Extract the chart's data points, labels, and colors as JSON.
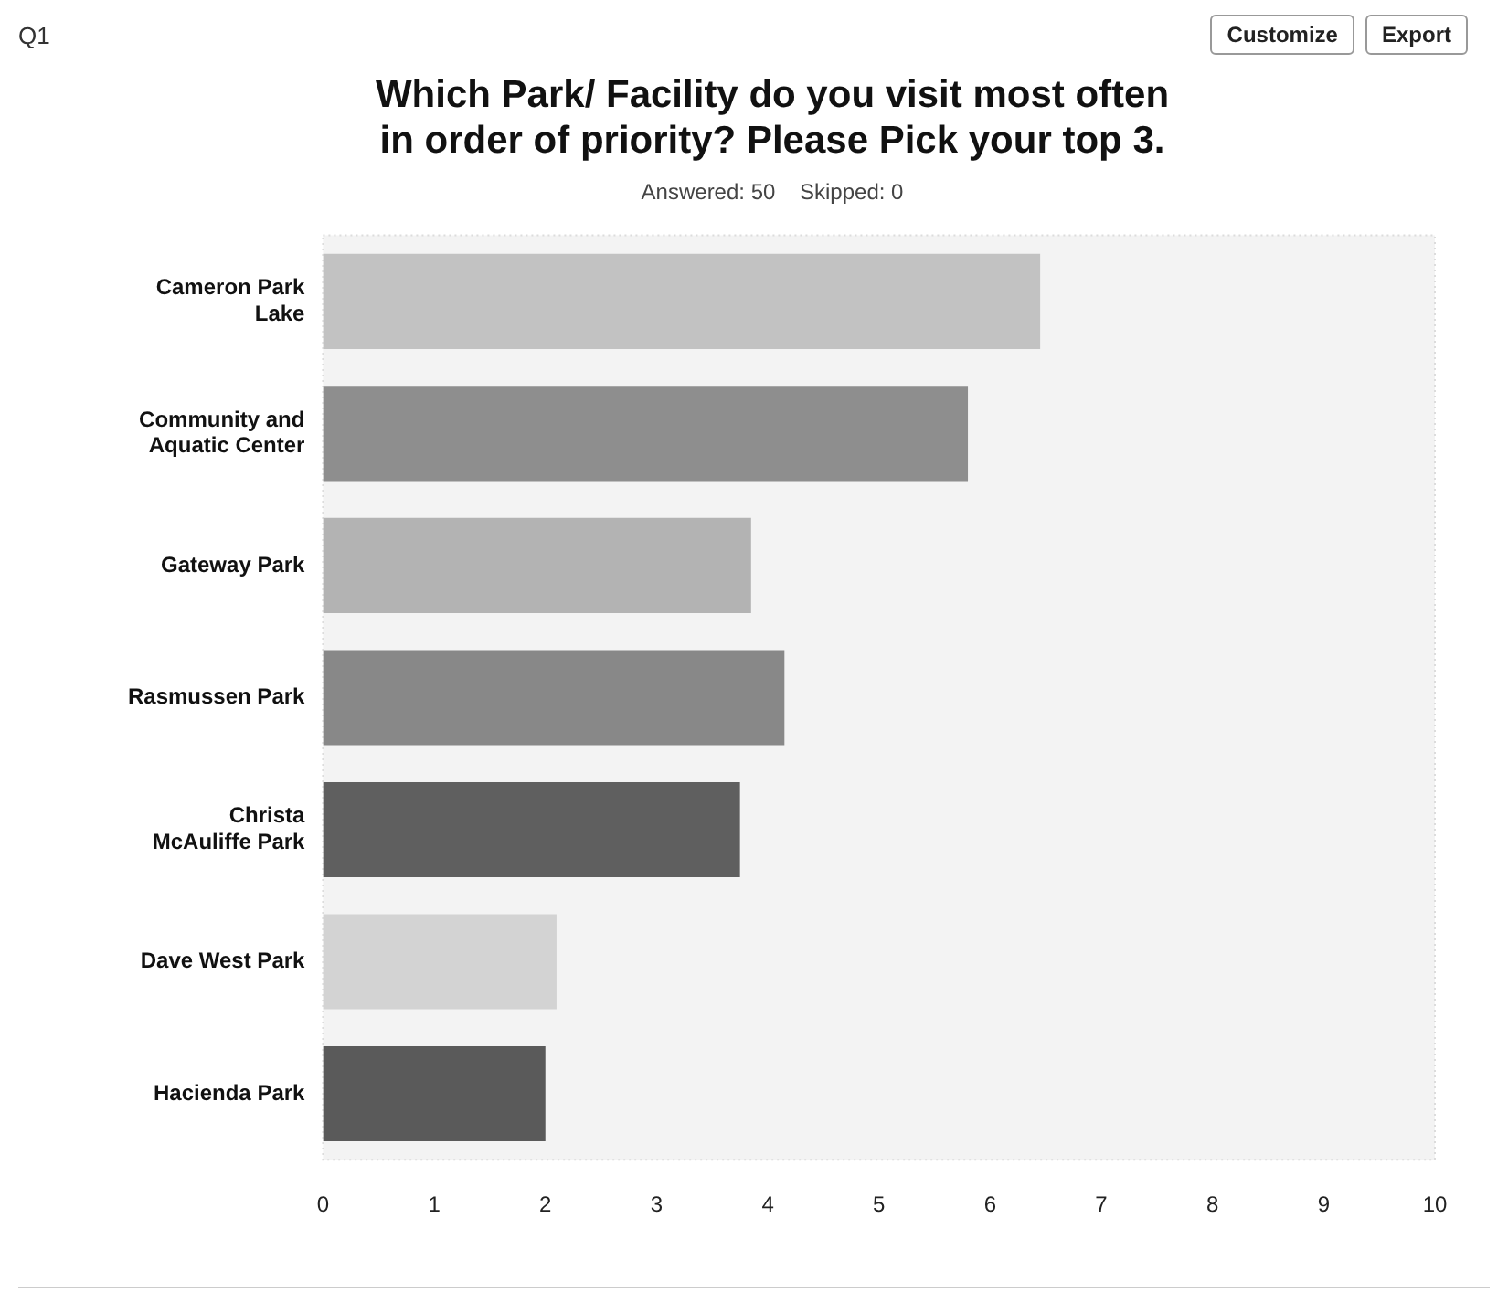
{
  "chart_data": {
    "type": "bar",
    "orientation": "horizontal",
    "title": [
      "Which Park/ Facility do you visit most often",
      "in order of priority? Please Pick your top 3."
    ],
    "subtitle": "Answered: 50    Skipped: 0",
    "categories": [
      "Cameron Park Lake",
      "Community and Aquatic Center",
      "Gateway Park",
      "Rasmussen Park",
      "Christa McAuliffe Park",
      "Dave West Park",
      "Hacienda Park"
    ],
    "values": [
      6.45,
      5.8,
      3.85,
      4.15,
      3.75,
      2.1,
      2.0
    ],
    "colors": [
      "#c2c2c2",
      "#8e8e8e",
      "#b3b3b3",
      "#888888",
      "#5f5f5f",
      "#d3d3d3",
      "#5a5a5a"
    ],
    "xlim": [
      0,
      10
    ],
    "xticks": [
      0,
      1,
      2,
      3,
      4,
      5,
      6,
      7,
      8,
      9,
      10
    ],
    "grid": false,
    "legend": false,
    "annotations": [
      "Q1",
      "Customize",
      "Export"
    ]
  }
}
